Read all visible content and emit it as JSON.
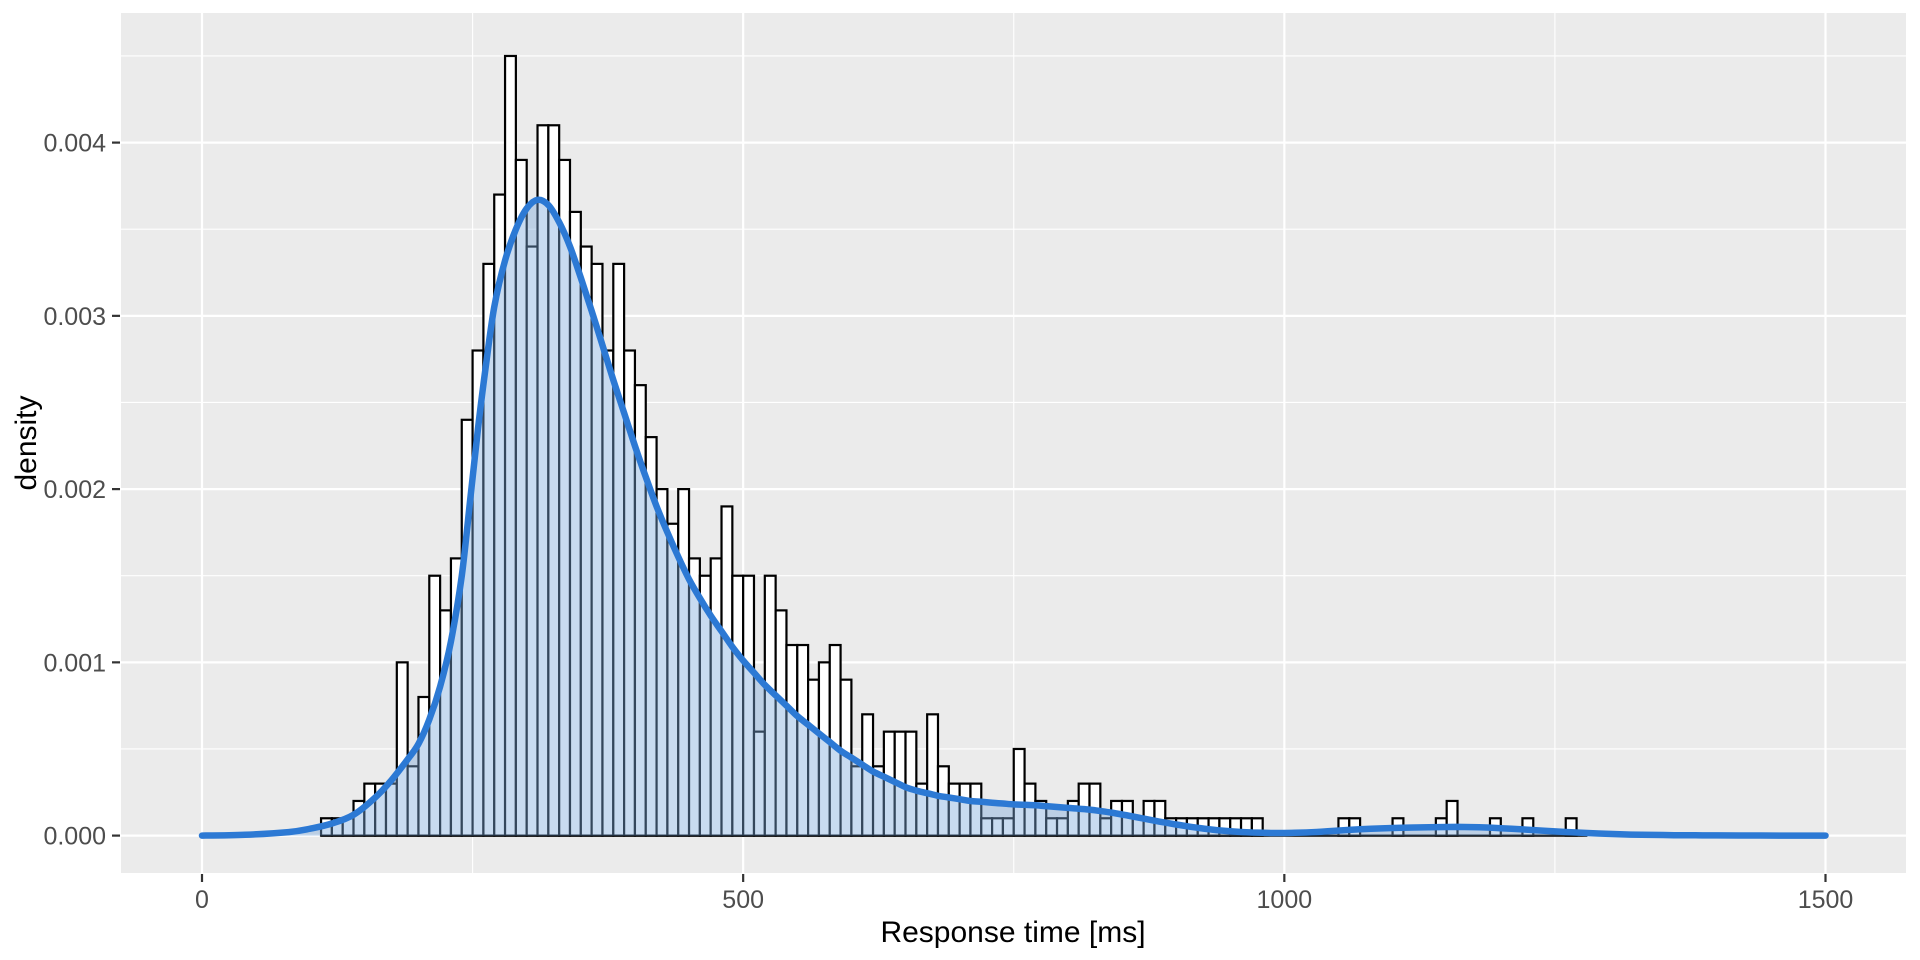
{
  "figure": {
    "background": "#ffffff",
    "panel_background": "#ebebeb",
    "grid_color": "#ffffff"
  },
  "colors": {
    "bar_fill": "#ffffff",
    "bar_stroke": "#000000",
    "density_line": "#2c79d4",
    "density_fill_rgba": "rgba(125,170,220,0.42)",
    "tick_label": "#4d4d4d",
    "tick_mark": "#333333",
    "axis_title": "#000000"
  },
  "chart_data": {
    "type": "histogram",
    "overlay": "density-curve",
    "title": "",
    "xlabel": "Response time [ms]",
    "ylabel": "density",
    "xlim": [
      0,
      1500
    ],
    "ylim": [
      0,
      0.00475
    ],
    "grid": "on",
    "legend": "none",
    "x_ticks": {
      "values": [
        0,
        500,
        1000,
        1500
      ],
      "labels": [
        "0",
        "500",
        "1000",
        "1500"
      ]
    },
    "x_minor_ticks": [
      250,
      750,
      1250
    ],
    "y_ticks": {
      "values_1e4": [
        0,
        10,
        20,
        30,
        40
      ],
      "labels": [
        "0.000",
        "0.001",
        "0.002",
        "0.003",
        "0.004"
      ]
    },
    "y_minor_ticks_1e4": [
      5,
      15,
      25,
      35,
      45
    ],
    "bins": {
      "start_ms": 110,
      "width_ms": 10,
      "note": "density heights in units of 1e-4",
      "heights_1e4": [
        1,
        1,
        1,
        2,
        3,
        3,
        3,
        10,
        4,
        8,
        15,
        13,
        16,
        24,
        28,
        33,
        37,
        45,
        39,
        34,
        41,
        41,
        39,
        36,
        34,
        33,
        28,
        33,
        28,
        26,
        23,
        20,
        18,
        20,
        16,
        15,
        16,
        19,
        15,
        15,
        6,
        15,
        13,
        11,
        11,
        9,
        10,
        11,
        9,
        4,
        7,
        4,
        6,
        6,
        6,
        3,
        7,
        4,
        3,
        3,
        3,
        1,
        1,
        1,
        5,
        3,
        2,
        1,
        1,
        2,
        3,
        3,
        1,
        2,
        2,
        1,
        2,
        2,
        1,
        1,
        1,
        1,
        1,
        1,
        1,
        1,
        1,
        0,
        0,
        0,
        0,
        0,
        0,
        0,
        1,
        1,
        0,
        0,
        0,
        1,
        0,
        0,
        0,
        1,
        2,
        0,
        0,
        0,
        1,
        0,
        0,
        1,
        0,
        0,
        0,
        1,
        0
      ]
    },
    "density_curve": {
      "note": "[x ms, density in 1e-4 units]",
      "points": [
        [
          0,
          0
        ],
        [
          40,
          0.05
        ],
        [
          80,
          0.2
        ],
        [
          100,
          0.4
        ],
        [
          120,
          0.7
        ],
        [
          140,
          1.2
        ],
        [
          160,
          2.2
        ],
        [
          175,
          3.2
        ],
        [
          190,
          4.4
        ],
        [
          200,
          5.3
        ],
        [
          210,
          6.7
        ],
        [
          220,
          8.6
        ],
        [
          230,
          11.2
        ],
        [
          240,
          15
        ],
        [
          248,
          19.5
        ],
        [
          255,
          23.5
        ],
        [
          262,
          27
        ],
        [
          270,
          30.5
        ],
        [
          280,
          33.2
        ],
        [
          290,
          35
        ],
        [
          300,
          36.2
        ],
        [
          310,
          36.7
        ],
        [
          320,
          36.4
        ],
        [
          330,
          35.4
        ],
        [
          340,
          34
        ],
        [
          350,
          32.2
        ],
        [
          360,
          30.3
        ],
        [
          370,
          28.3
        ],
        [
          380,
          26.3
        ],
        [
          390,
          24.4
        ],
        [
          400,
          22.5
        ],
        [
          410,
          20.7
        ],
        [
          420,
          19
        ],
        [
          430,
          17.5
        ],
        [
          440,
          16.1
        ],
        [
          450,
          14.8
        ],
        [
          460,
          13.7
        ],
        [
          470,
          12.7
        ],
        [
          480,
          11.8
        ],
        [
          490,
          10.9
        ],
        [
          500,
          10.1
        ],
        [
          510,
          9.4
        ],
        [
          520,
          8.7
        ],
        [
          530,
          8.1
        ],
        [
          540,
          7.5
        ],
        [
          550,
          6.9
        ],
        [
          560,
          6.4
        ],
        [
          570,
          5.9
        ],
        [
          580,
          5.4
        ],
        [
          590,
          4.9
        ],
        [
          600,
          4.5
        ],
        [
          610,
          4.1
        ],
        [
          620,
          3.7
        ],
        [
          630,
          3.4
        ],
        [
          640,
          3.1
        ],
        [
          650,
          2.8
        ],
        [
          660,
          2.6
        ],
        [
          670,
          2.45
        ],
        [
          680,
          2.3
        ],
        [
          690,
          2.2
        ],
        [
          700,
          2.1
        ],
        [
          710,
          2
        ],
        [
          720,
          1.95
        ],
        [
          730,
          1.9
        ],
        [
          740,
          1.85
        ],
        [
          750,
          1.8
        ],
        [
          760,
          1.78
        ],
        [
          770,
          1.75
        ],
        [
          780,
          1.7
        ],
        [
          790,
          1.65
        ],
        [
          800,
          1.6
        ],
        [
          810,
          1.55
        ],
        [
          820,
          1.5
        ],
        [
          830,
          1.42
        ],
        [
          840,
          1.33
        ],
        [
          850,
          1.22
        ],
        [
          860,
          1.1
        ],
        [
          870,
          0.98
        ],
        [
          880,
          0.86
        ],
        [
          890,
          0.75
        ],
        [
          900,
          0.64
        ],
        [
          910,
          0.54
        ],
        [
          920,
          0.45
        ],
        [
          930,
          0.37
        ],
        [
          940,
          0.3
        ],
        [
          950,
          0.25
        ],
        [
          960,
          0.21
        ],
        [
          970,
          0.18
        ],
        [
          980,
          0.16
        ],
        [
          990,
          0.15
        ],
        [
          1000,
          0.15
        ],
        [
          1010,
          0.16
        ],
        [
          1020,
          0.18
        ],
        [
          1030,
          0.21
        ],
        [
          1040,
          0.25
        ],
        [
          1060,
          0.33
        ],
        [
          1080,
          0.4
        ],
        [
          1100,
          0.44
        ],
        [
          1120,
          0.47
        ],
        [
          1140,
          0.49
        ],
        [
          1160,
          0.5
        ],
        [
          1180,
          0.48
        ],
        [
          1200,
          0.43
        ],
        [
          1220,
          0.36
        ],
        [
          1240,
          0.28
        ],
        [
          1260,
          0.21
        ],
        [
          1280,
          0.15
        ],
        [
          1300,
          0.1
        ],
        [
          1320,
          0.06
        ],
        [
          1340,
          0.04
        ],
        [
          1360,
          0.025
        ],
        [
          1380,
          0.015
        ],
        [
          1400,
          0.01
        ],
        [
          1430,
          0.005
        ],
        [
          1460,
          0.002
        ],
        [
          1500,
          0
        ]
      ]
    }
  }
}
